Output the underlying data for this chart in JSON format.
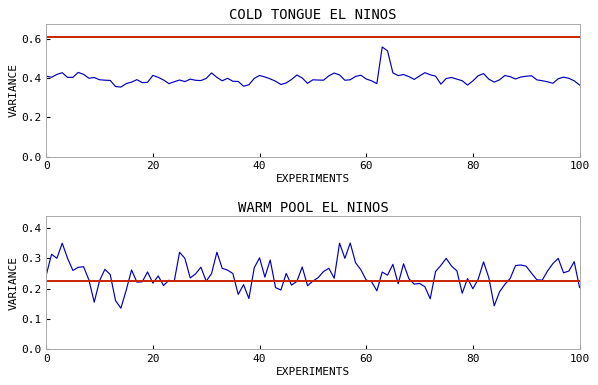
{
  "cold_hline": 0.61,
  "warm_hline": 0.225,
  "cold_ylim": [
    0.0,
    0.68
  ],
  "warm_ylim": [
    0.0,
    0.44
  ],
  "cold_yticks": [
    0.0,
    0.2,
    0.4,
    0.6
  ],
  "warm_yticks": [
    0.0,
    0.1,
    0.2,
    0.3,
    0.4
  ],
  "xticks": [
    0,
    20,
    40,
    60,
    80,
    100
  ],
  "xlabel": "EXPERIMENTS",
  "ylabel": "VARIANCE",
  "cold_title": "COLD TONGUE EL NINOS",
  "warm_title": "WARM POOL EL NINOS",
  "line_color_blue": "#0000bb",
  "line_color_red": "#cc2200",
  "bg_color": "#ffffff",
  "title_fontsize": 10,
  "label_fontsize": 8,
  "tick_fontsize": 8
}
